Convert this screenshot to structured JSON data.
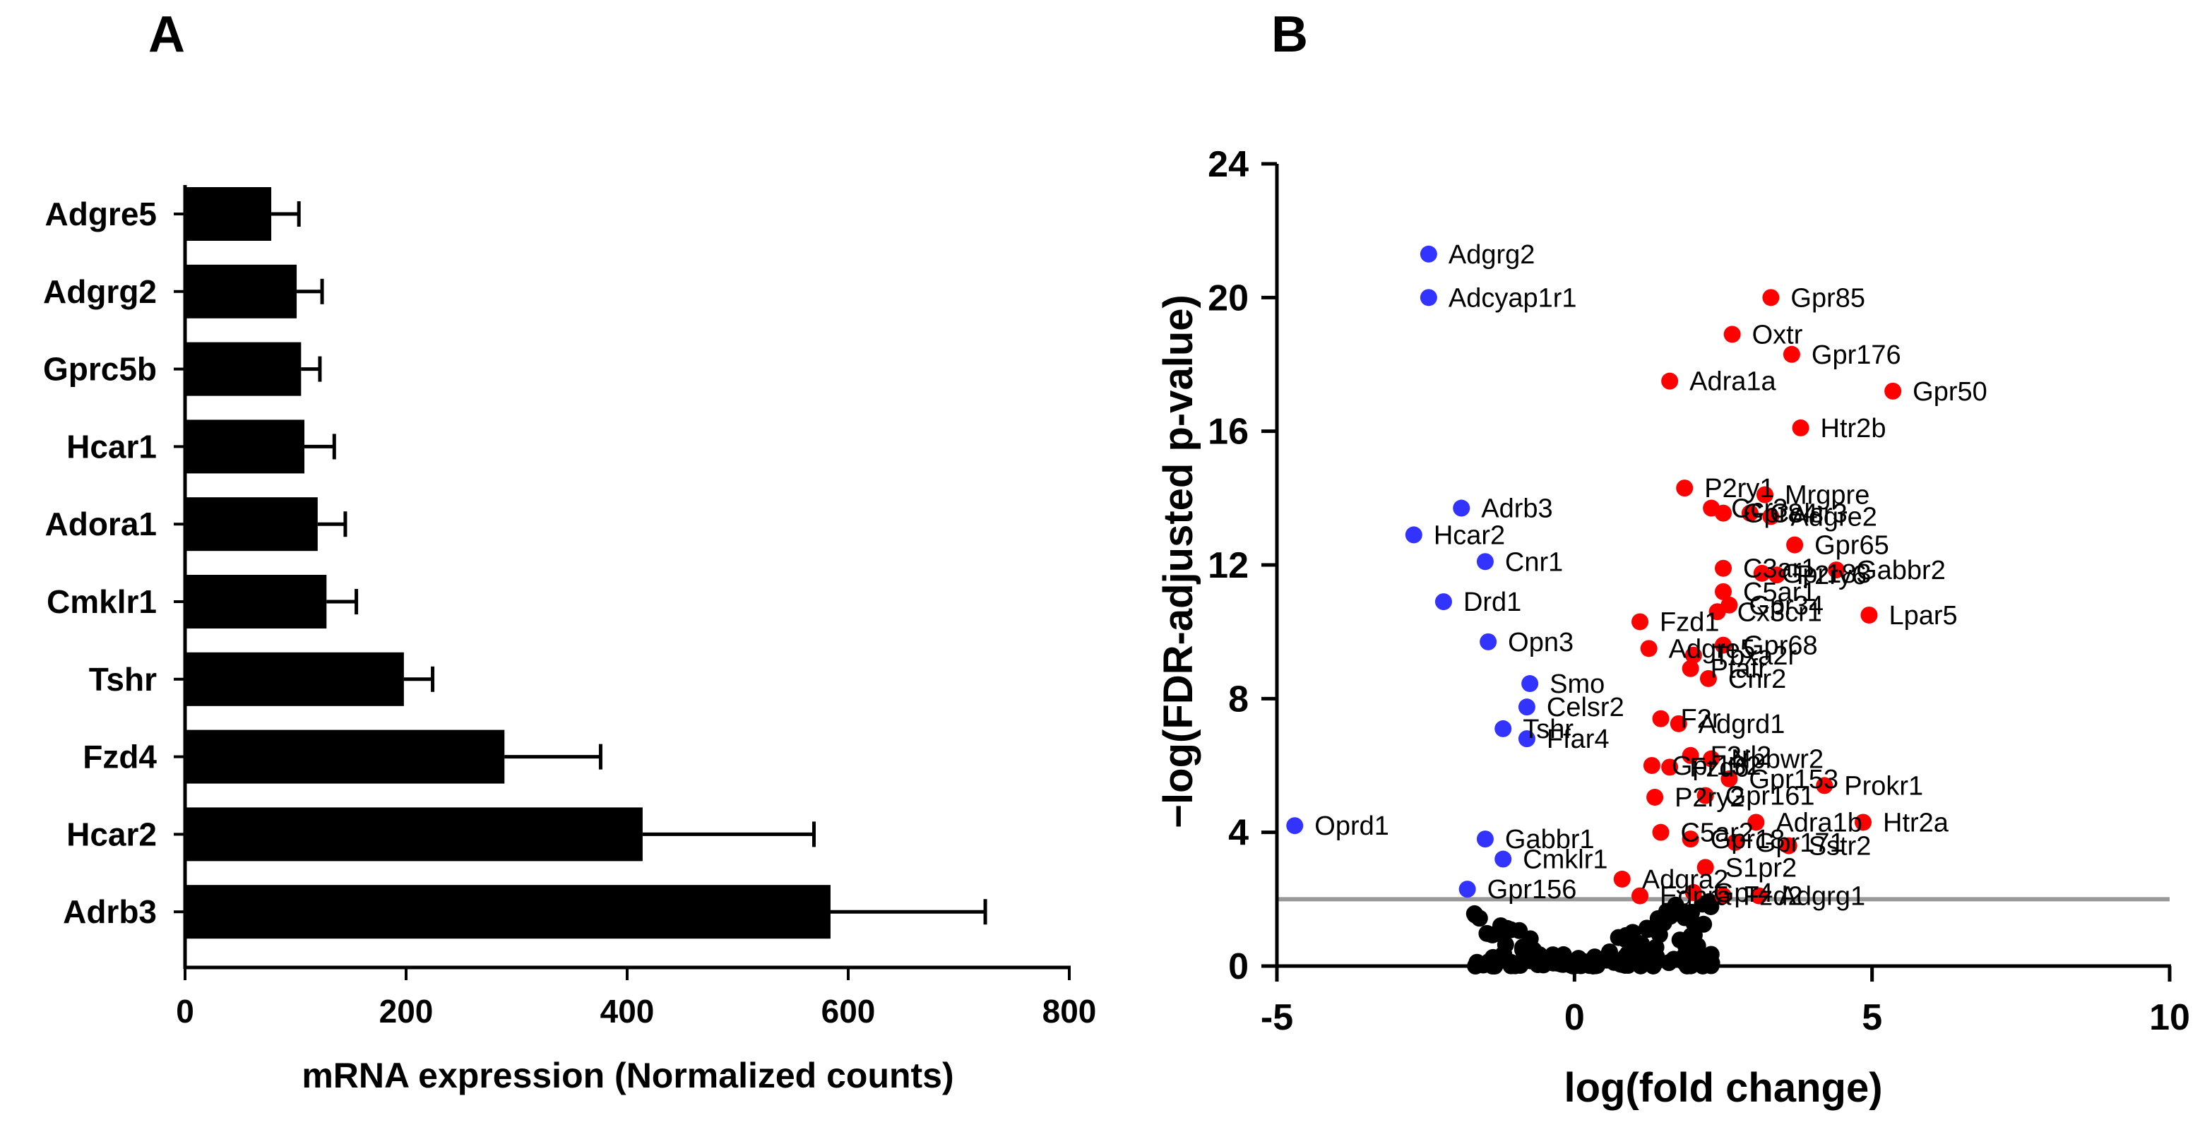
{
  "panels": {
    "a_letter": "A",
    "b_letter": "B"
  },
  "colors": {
    "bar": "#000000",
    "up": "#ff0000",
    "down": "#3333ff",
    "ns": "#000000",
    "threshold": "#999999"
  },
  "chart_data": [
    {
      "type": "bar",
      "orientation": "horizontal",
      "categories": [
        "Adgre5",
        "Adgrg2",
        "Gprc5b",
        "Hcar1",
        "Adora1",
        "Cmklr1",
        "Tshr",
        "Fzd4",
        "Hcar2",
        "Adrb3"
      ],
      "values": [
        78,
        101,
        105,
        108,
        120,
        128,
        198,
        289,
        414,
        584
      ],
      "errors": [
        25,
        23,
        17,
        27,
        25,
        27,
        26,
        87,
        155,
        140
      ],
      "xlabel": "mRNA expression (Normalized counts)",
      "ylabel": "",
      "xlim": [
        0,
        800
      ],
      "xticks": [
        "0",
        "200",
        "400",
        "600",
        "800"
      ]
    },
    {
      "type": "scatter",
      "xlabel": "log(fold change)",
      "ylabel": "−log(FDR-adjusted p-value)",
      "xlim": [
        -5,
        10
      ],
      "ylim": [
        0,
        24
      ],
      "xticks": [
        "-5",
        "0",
        "5",
        "10"
      ],
      "yticks": [
        "0",
        "4",
        "8",
        "12",
        "16",
        "20",
        "24"
      ],
      "threshold_y": 2,
      "labeled_points": [
        {
          "label": "Adgrg2",
          "x": -2.45,
          "y": 21.3,
          "g": "down"
        },
        {
          "label": "Adcyap1r1",
          "x": -2.45,
          "y": 20.0,
          "g": "down"
        },
        {
          "label": "Adrb3",
          "x": -1.9,
          "y": 13.7,
          "g": "down"
        },
        {
          "label": "Hcar2",
          "x": -2.7,
          "y": 12.9,
          "g": "down"
        },
        {
          "label": "Cnr1",
          "x": -1.5,
          "y": 12.1,
          "g": "down"
        },
        {
          "label": "Drd1",
          "x": -2.2,
          "y": 10.9,
          "g": "down"
        },
        {
          "label": "Opn3",
          "x": -1.45,
          "y": 9.7,
          "g": "down"
        },
        {
          "label": "Smo",
          "x": -0.75,
          "y": 8.45,
          "g": "down"
        },
        {
          "label": "Celsr2",
          "x": -0.8,
          "y": 7.75,
          "g": "down"
        },
        {
          "label": "Tshr",
          "x": -1.2,
          "y": 7.1,
          "g": "down"
        },
        {
          "label": "Ffar4",
          "x": -0.8,
          "y": 6.8,
          "g": "down"
        },
        {
          "label": "Oprd1",
          "x": -4.7,
          "y": 4.2,
          "g": "down"
        },
        {
          "label": "Gabbr1",
          "x": -1.5,
          "y": 3.8,
          "g": "down"
        },
        {
          "label": "Cmklr1",
          "x": -1.2,
          "y": 3.2,
          "g": "down"
        },
        {
          "label": "Gpr156",
          "x": -1.8,
          "y": 2.3,
          "g": "down"
        },
        {
          "label": "Gpr85",
          "x": 3.3,
          "y": 20.0,
          "g": "up"
        },
        {
          "label": "Oxtr",
          "x": 2.65,
          "y": 18.9,
          "g": "up"
        },
        {
          "label": "Gpr176",
          "x": 3.65,
          "y": 18.3,
          "g": "up"
        },
        {
          "label": "Adra1a",
          "x": 1.6,
          "y": 17.5,
          "g": "up"
        },
        {
          "label": "Gpr50",
          "x": 5.35,
          "y": 17.2,
          "g": "up"
        },
        {
          "label": "Htr2b",
          "x": 3.8,
          "y": 16.1,
          "g": "up"
        },
        {
          "label": "P2ry1",
          "x": 1.85,
          "y": 14.3,
          "g": "up"
        },
        {
          "label": "Mrgpre",
          "x": 3.2,
          "y": 14.1,
          "g": "up"
        },
        {
          "label": "Ccr3",
          "x": 2.3,
          "y": 13.7,
          "g": "up"
        },
        {
          "label": "Gpr84",
          "x": 2.5,
          "y": 13.55,
          "g": "up"
        },
        {
          "label": "Celsr3",
          "x": 2.95,
          "y": 13.55,
          "g": "up"
        },
        {
          "label": "Adgre2",
          "x": 3.3,
          "y": 13.45,
          "g": "up"
        },
        {
          "label": "Gpr65",
          "x": 3.7,
          "y": 12.6,
          "g": "up"
        },
        {
          "label": "Gpr183",
          "x": 3.15,
          "y": 11.75,
          "g": "up"
        },
        {
          "label": "Gabbr2",
          "x": 4.4,
          "y": 11.85,
          "g": "up"
        },
        {
          "label": "C3ar1",
          "x": 2.5,
          "y": 11.9,
          "g": "up"
        },
        {
          "label": "P2ry6",
          "x": 3.4,
          "y": 11.7,
          "g": "up"
        },
        {
          "label": "C5ar1",
          "x": 2.5,
          "y": 11.2,
          "g": "up"
        },
        {
          "label": "Lpar5",
          "x": 4.95,
          "y": 10.5,
          "g": "up"
        },
        {
          "label": "Gpr34",
          "x": 2.6,
          "y": 10.8,
          "g": "up"
        },
        {
          "label": "Cx3cr1",
          "x": 2.4,
          "y": 10.6,
          "g": "up"
        },
        {
          "label": "Fzd1",
          "x": 1.1,
          "y": 10.3,
          "g": "up"
        },
        {
          "label": "Adgre5",
          "x": 1.25,
          "y": 9.5,
          "g": "up"
        },
        {
          "label": "Gpr68",
          "x": 2.5,
          "y": 9.6,
          "g": "up"
        },
        {
          "label": "Tbxa2r",
          "x": 2.0,
          "y": 9.3,
          "g": "up"
        },
        {
          "label": "Ptafr",
          "x": 1.95,
          "y": 8.9,
          "g": "up"
        },
        {
          "label": "Cnr2",
          "x": 2.25,
          "y": 8.6,
          "g": "up"
        },
        {
          "label": "F2r",
          "x": 1.45,
          "y": 7.4,
          "g": "up"
        },
        {
          "label": "Adgrd1",
          "x": 1.75,
          "y": 7.25,
          "g": "up"
        },
        {
          "label": "F2rl2",
          "x": 1.95,
          "y": 6.3,
          "g": "up"
        },
        {
          "label": "Npbwr2",
          "x": 2.3,
          "y": 6.2,
          "g": "up"
        },
        {
          "label": "Gpr132",
          "x": 1.3,
          "y": 6.0,
          "g": "up"
        },
        {
          "label": "Fzd6",
          "x": 1.6,
          "y": 5.95,
          "g": "up"
        },
        {
          "label": "Gpr153",
          "x": 2.6,
          "y": 5.6,
          "g": "up"
        },
        {
          "label": "Prokr1",
          "x": 4.2,
          "y": 5.4,
          "g": "up"
        },
        {
          "label": "P2ry2",
          "x": 1.35,
          "y": 5.05,
          "g": "up"
        },
        {
          "label": "Gpr161",
          "x": 2.2,
          "y": 5.1,
          "g": "up"
        },
        {
          "label": "Adra1b",
          "x": 3.05,
          "y": 4.3,
          "g": "up"
        },
        {
          "label": "Htr2a",
          "x": 4.85,
          "y": 4.3,
          "g": "up"
        },
        {
          "label": "C5ar2",
          "x": 1.45,
          "y": 4.0,
          "g": "up"
        },
        {
          "label": "Gpr18",
          "x": 1.95,
          "y": 3.8,
          "g": "up"
        },
        {
          "label": "Gpr171",
          "x": 2.7,
          "y": 3.7,
          "g": "up"
        },
        {
          "label": "Sstr2",
          "x": 3.6,
          "y": 3.6,
          "g": "up"
        },
        {
          "label": "S1pr2",
          "x": 2.2,
          "y": 2.95,
          "g": "up"
        },
        {
          "label": "Adgra2",
          "x": 0.8,
          "y": 2.6,
          "g": "up"
        },
        {
          "label": "Gpr4",
          "x": 2.0,
          "y": 2.2,
          "g": "up"
        },
        {
          "label": "Ednra",
          "x": 1.1,
          "y": 2.1,
          "g": "up"
        },
        {
          "label": "Fzd2",
          "x": 2.5,
          "y": 2.1,
          "g": "up"
        },
        {
          "label": "Adgrg1",
          "x": 3.1,
          "y": 2.1,
          "g": "up"
        }
      ],
      "nonsignificant_count": 140
    }
  ]
}
